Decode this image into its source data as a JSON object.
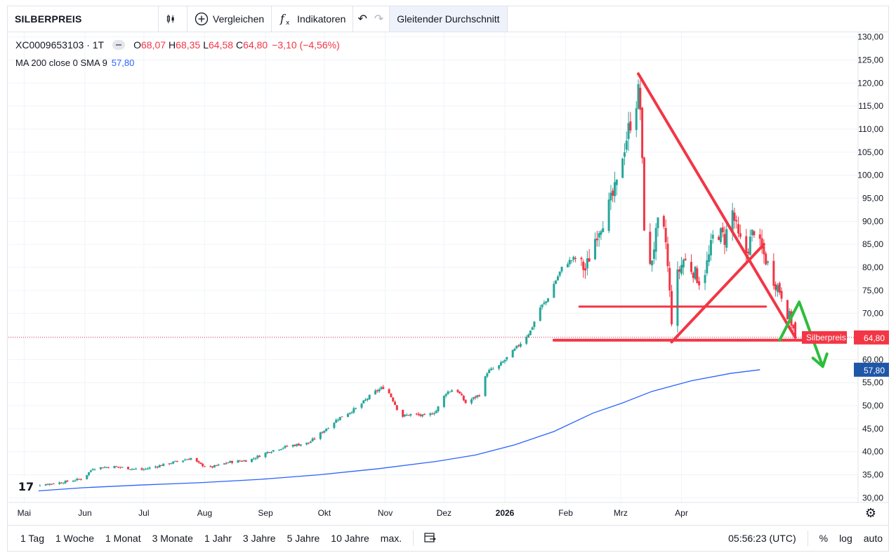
{
  "toolbar": {
    "symbol": "SILBERPREIS",
    "candle_icon": "candlestick-icon",
    "compare_label": "Vergleichen",
    "indicators_label": "Indikatoren",
    "undo_icon": "undo-icon",
    "redo_icon": "redo-icon",
    "active_indicator": "Gleitender Durchschnitt"
  },
  "legend": {
    "symbol_line": "XC0009653103 · 1T",
    "o_label": "O",
    "o_value": "68,07",
    "h_label": "H",
    "h_value": "68,35",
    "l_label": "L",
    "l_value": "64,58",
    "c_label": "C",
    "c_value": "64,80",
    "change": "−3,10 (−4,56%)",
    "ma_line": "MA 200 close 0 SMA 9",
    "ma_value": "57,80"
  },
  "bottom": {
    "ranges": [
      "1 Tag",
      "1 Woche",
      "1 Monat",
      "3 Monate",
      "1 Jahr",
      "3 Jahre",
      "5 Jahre",
      "10 Jahre",
      "max."
    ],
    "time": "05:56:23 (UTC)",
    "percent": "%",
    "log": "log",
    "auto": "auto"
  },
  "colors": {
    "up": "#26a69a",
    "down": "#f23645",
    "ma": "#2962ff",
    "drawing_red": "#f23645",
    "drawing_green": "#2ebd3b",
    "ma_label_bg": "#1e56a8"
  },
  "chart_data": {
    "type": "candlestick",
    "symbol": "SILBERPREIS",
    "interval": "1T",
    "y_ticks": [
      "30,00",
      "35,00",
      "40,00",
      "45,00",
      "50,00",
      "55,00",
      "60,00",
      "65,00",
      "70,00",
      "75,00",
      "80,00",
      "85,00",
      "90,00",
      "95,00",
      "100,00",
      "105,00",
      "110,00",
      "115,00",
      "120,00",
      "125,00",
      "130,00"
    ],
    "ylim": [
      29,
      131
    ],
    "x_ticks": [
      {
        "label": "Mai",
        "t": 0
      },
      {
        "label": "Jun",
        "t": 31
      },
      {
        "label": "Jul",
        "t": 61
      },
      {
        "label": "Aug",
        "t": 92
      },
      {
        "label": "Sep",
        "t": 123
      },
      {
        "label": "Okt",
        "t": 153
      },
      {
        "label": "Nov",
        "t": 184
      },
      {
        "label": "Dez",
        "t": 214
      },
      {
        "label": "2026",
        "t": 245
      },
      {
        "label": "Feb",
        "t": 276
      },
      {
        "label": "Mrz",
        "t": 304
      },
      {
        "label": "Apr",
        "t": 335
      }
    ],
    "last_price": {
      "label": "Silberpreis",
      "value": 64.8,
      "display": "64,80"
    },
    "ma_last": {
      "value": 57.8,
      "display": "57,80"
    },
    "close_path": [
      [
        0,
        32.6
      ],
      [
        10,
        32.9
      ],
      [
        20,
        33.4
      ],
      [
        30,
        34.2
      ],
      [
        35,
        36.4
      ],
      [
        45,
        36.8
      ],
      [
        60,
        36.1
      ],
      [
        75,
        37.6
      ],
      [
        85,
        38.6
      ],
      [
        90,
        37.2
      ],
      [
        95,
        36.6
      ],
      [
        105,
        37.8
      ],
      [
        115,
        38.2
      ],
      [
        125,
        40.1
      ],
      [
        135,
        41.3
      ],
      [
        145,
        41.9
      ],
      [
        150,
        43.6
      ],
      [
        160,
        47.2
      ],
      [
        170,
        49.6
      ],
      [
        178,
        52.8
      ],
      [
        184,
        54.2
      ],
      [
        188,
        51.2
      ],
      [
        192,
        47.6
      ],
      [
        198,
        48.2
      ],
      [
        205,
        47.6
      ],
      [
        210,
        48.9
      ],
      [
        215,
        52.8
      ],
      [
        220,
        53.8
      ],
      [
        225,
        50.6
      ],
      [
        232,
        52.4
      ],
      [
        236,
        57.3
      ],
      [
        242,
        58.6
      ],
      [
        250,
        62.1
      ],
      [
        258,
        66.2
      ],
      [
        263,
        71.3
      ],
      [
        266,
        72.6
      ],
      [
        270,
        76.4
      ],
      [
        275,
        80.6
      ],
      [
        281,
        82.1
      ],
      [
        286,
        79.4
      ],
      [
        292,
        87.7
      ],
      [
        297,
        92.1
      ],
      [
        302,
        97.6
      ],
      [
        305,
        104.7
      ],
      [
        309,
        111.6
      ],
      [
        313,
        117.8
      ],
      [
        314,
        114.6
      ],
      [
        316,
        89.3
      ],
      [
        318,
        77.2
      ],
      [
        321,
        84.7
      ],
      [
        324,
        91.2
      ],
      [
        327,
        85.4
      ],
      [
        330,
        68.7
      ],
      [
        333,
        78.2
      ],
      [
        336,
        81.7
      ],
      [
        341,
        79.3
      ],
      [
        345,
        76.4
      ],
      [
        349,
        82.3
      ],
      [
        352,
        88.4
      ],
      [
        357,
        86.2
      ],
      [
        361,
        92.1
      ],
      [
        364,
        86.3
      ],
      [
        368,
        83.2
      ],
      [
        372,
        88.4
      ],
      [
        375,
        84.5
      ],
      [
        378,
        81.7
      ],
      [
        382,
        77.4
      ],
      [
        386,
        74.3
      ],
      [
        389,
        70.2
      ],
      [
        391,
        68.1
      ],
      [
        393,
        64.8
      ]
    ],
    "ma_points": [
      [
        0,
        31.3
      ],
      [
        30,
        32.2
      ],
      [
        60,
        32.8
      ],
      [
        90,
        33.3
      ],
      [
        120,
        34.0
      ],
      [
        150,
        35.0
      ],
      [
        180,
        36.3
      ],
      [
        210,
        37.9
      ],
      [
        230,
        39.3
      ],
      [
        250,
        41.5
      ],
      [
        270,
        44.4
      ],
      [
        290,
        48.4
      ],
      [
        305,
        50.6
      ],
      [
        320,
        53.1
      ],
      [
        340,
        55.4
      ],
      [
        360,
        57.0
      ],
      [
        375,
        57.8
      ]
    ],
    "annotations": [
      {
        "type": "trendline",
        "color": "red",
        "points": [
          [
            313,
            122
          ],
          [
            393,
            64.8
          ]
        ]
      },
      {
        "type": "trendline",
        "color": "red",
        "points": [
          [
            330,
            63.8
          ],
          [
            377,
            85
          ]
        ]
      },
      {
        "type": "horizontal",
        "color": "red",
        "y": 71.5,
        "from": 283,
        "to": 378
      },
      {
        "type": "horizontal",
        "color": "red",
        "y": 64.2,
        "from": 270,
        "to": 400
      },
      {
        "type": "arrow",
        "color": "green",
        "points": [
          [
            385,
            64.2
          ],
          [
            395,
            72.5
          ],
          [
            407,
            58.5
          ]
        ]
      }
    ]
  }
}
